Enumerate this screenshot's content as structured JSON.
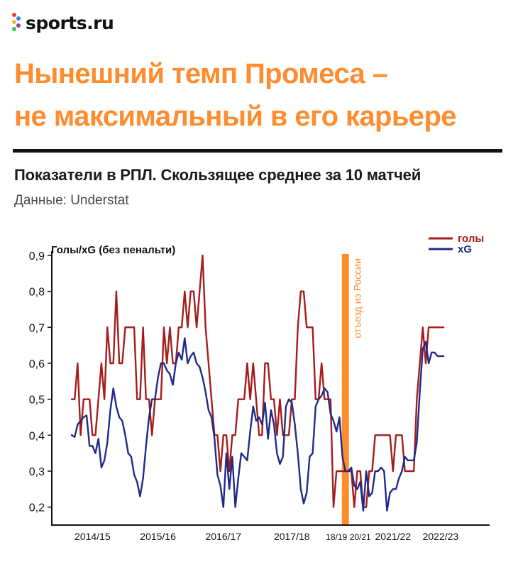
{
  "brand": {
    "name": "sports.ru",
    "dot_colors": [
      "#e8412c",
      "#f7b731",
      "#3fbf5f",
      "#2e86de",
      "#8e44ad"
    ]
  },
  "headline": {
    "line1": "Нынешний темп Промеса –",
    "line2": "не максимальный в его карьере"
  },
  "subtitle": "Показатели в РПЛ. Скользящее среднее за 10 матчей",
  "source": "Данные: Understat",
  "colors": {
    "accent": "#ff8c2e",
    "goals": "#a51c1c",
    "xg": "#1f2a8a",
    "text": "#111111"
  },
  "chart_data": {
    "type": "line",
    "title": "Показатели в РПЛ. Скользящее среднее за 10 матчей",
    "ylabel": "Голы/xG  (без пенальти)",
    "xlabel": "",
    "ylim": [
      0.15,
      0.9
    ],
    "yticks": [
      "0,2",
      "0,3",
      "0,4",
      "0,5",
      "0,6",
      "0,7",
      "0,8",
      "0,9"
    ],
    "ytick_values": [
      0.2,
      0.3,
      0.4,
      0.5,
      0.6,
      0.7,
      0.8,
      0.9
    ],
    "xlim": [
      0,
      140
    ],
    "season_labels": [
      {
        "label": "2014/15",
        "x": 7
      },
      {
        "label": "2015/16",
        "x": 29
      },
      {
        "label": "2016/17",
        "x": 51
      },
      {
        "label": "2017/18",
        "x": 74
      },
      {
        "label": "18/19",
        "x": 89
      },
      {
        "label": "20/21",
        "x": 97
      },
      {
        "label": "2021/22",
        "x": 108
      },
      {
        "label": "2022/23",
        "x": 124
      }
    ],
    "grid": false,
    "legend": "top-right",
    "annotation": {
      "text": "отъезд из России",
      "x": 92
    },
    "series": [
      {
        "name": "голы",
        "color": "#a51c1c",
        "x": [
          0,
          1,
          2,
          3,
          4,
          5,
          6,
          7,
          8,
          9,
          10,
          11,
          12,
          13,
          14,
          15,
          16,
          17,
          18,
          19,
          20,
          21,
          22,
          23,
          24,
          25,
          26,
          27,
          28,
          29,
          30,
          31,
          32,
          33,
          34,
          35,
          36,
          37,
          38,
          39,
          40,
          41,
          42,
          43,
          44,
          45,
          46,
          47,
          48,
          49,
          50,
          51,
          52,
          53,
          54,
          55,
          56,
          57,
          58,
          59,
          60,
          61,
          62,
          63,
          64,
          65,
          66,
          67,
          68,
          69,
          70,
          71,
          72,
          73,
          74,
          75,
          76,
          77,
          78,
          79,
          80,
          81,
          82,
          83,
          84,
          85,
          86,
          87,
          88,
          89,
          90,
          91,
          92,
          93,
          94,
          95,
          96,
          97,
          98,
          99,
          100,
          101,
          102,
          103,
          104,
          105,
          106,
          107,
          108,
          109,
          110,
          111,
          112,
          113,
          114,
          115,
          116,
          117,
          118,
          119,
          120,
          121,
          122,
          123,
          124,
          125
        ],
        "values": [
          0.5,
          0.5,
          0.6,
          0.4,
          0.5,
          0.5,
          0.5,
          0.4,
          0.4,
          0.5,
          0.6,
          0.5,
          0.7,
          0.6,
          0.6,
          0.8,
          0.6,
          0.6,
          0.7,
          0.7,
          0.7,
          0.7,
          0.5,
          0.5,
          0.7,
          0.5,
          0.5,
          0.4,
          0.5,
          0.5,
          0.5,
          0.7,
          0.6,
          0.7,
          0.6,
          0.6,
          0.7,
          0.7,
          0.8,
          0.7,
          0.8,
          0.8,
          0.7,
          0.8,
          0.9,
          0.7,
          0.6,
          0.5,
          0.4,
          0.4,
          0.3,
          0.4,
          0.4,
          0.3,
          0.4,
          0.4,
          0.5,
          0.5,
          0.5,
          0.6,
          0.5,
          0.6,
          0.5,
          0.4,
          0.4,
          0.6,
          0.6,
          0.5,
          0.5,
          0.4,
          0.5,
          0.4,
          0.4,
          0.4,
          0.5,
          0.5,
          0.7,
          0.8,
          0.8,
          0.7,
          0.7,
          0.7,
          0.5,
          0.5,
          0.6,
          0.5,
          0.5,
          0.5,
          0.2,
          0.3,
          0.3,
          0.3,
          0.3,
          0.3,
          0.3,
          0.2,
          0.3,
          0.3,
          0.2,
          0.2,
          0.3,
          0.3,
          0.4,
          0.4,
          0.4,
          0.4,
          0.4,
          0.4,
          0.3,
          0.4,
          0.4,
          0.4,
          0.3,
          0.3,
          0.3,
          0.3,
          0.5,
          0.6,
          0.7,
          0.6,
          0.7,
          0.7,
          0.7,
          0.7,
          0.7,
          0.7
        ]
      },
      {
        "name": "xG",
        "color": "#1f2a8a",
        "x": [
          0,
          1,
          2,
          3,
          4,
          5,
          6,
          7,
          8,
          9,
          10,
          11,
          12,
          13,
          14,
          15,
          16,
          17,
          18,
          19,
          20,
          21,
          22,
          23,
          24,
          25,
          26,
          27,
          28,
          29,
          30,
          31,
          32,
          33,
          34,
          35,
          36,
          37,
          38,
          39,
          40,
          41,
          42,
          43,
          44,
          45,
          46,
          47,
          48,
          49,
          50,
          51,
          52,
          53,
          54,
          55,
          56,
          57,
          58,
          59,
          60,
          61,
          62,
          63,
          64,
          65,
          66,
          67,
          68,
          69,
          70,
          71,
          72,
          73,
          74,
          75,
          76,
          77,
          78,
          79,
          80,
          81,
          82,
          83,
          84,
          85,
          86,
          87,
          88,
          89,
          90,
          91,
          92,
          93,
          94,
          95,
          96,
          97,
          98,
          99,
          100,
          101,
          102,
          103,
          104,
          105,
          106,
          107,
          108,
          109,
          110,
          111,
          112,
          113,
          114,
          115,
          116,
          117,
          118,
          119,
          120,
          121,
          122,
          123,
          124,
          125
        ],
        "values": [
          0.4,
          0.395,
          0.43,
          0.44,
          0.45,
          0.455,
          0.37,
          0.37,
          0.35,
          0.39,
          0.31,
          0.33,
          0.38,
          0.47,
          0.53,
          0.48,
          0.45,
          0.44,
          0.4,
          0.35,
          0.34,
          0.29,
          0.27,
          0.23,
          0.28,
          0.37,
          0.45,
          0.5,
          0.5,
          0.56,
          0.6,
          0.6,
          0.58,
          0.57,
          0.54,
          0.6,
          0.63,
          0.61,
          0.67,
          0.6,
          0.62,
          0.63,
          0.6,
          0.59,
          0.56,
          0.52,
          0.47,
          0.45,
          0.39,
          0.29,
          0.26,
          0.2,
          0.35,
          0.25,
          0.34,
          0.2,
          0.28,
          0.35,
          0.34,
          0.33,
          0.41,
          0.48,
          0.44,
          0.45,
          0.43,
          0.49,
          0.39,
          0.47,
          0.43,
          0.35,
          0.32,
          0.34,
          0.48,
          0.5,
          0.49,
          0.43,
          0.35,
          0.25,
          0.21,
          0.24,
          0.34,
          0.35,
          0.48,
          0.5,
          0.51,
          0.53,
          0.52,
          0.46,
          0.44,
          0.41,
          0.45,
          0.34,
          0.3,
          0.3,
          0.31,
          0.26,
          0.25,
          0.27,
          0.19,
          0.3,
          0.23,
          0.24,
          0.3,
          0.3,
          0.31,
          0.3,
          0.19,
          0.24,
          0.25,
          0.25,
          0.28,
          0.3,
          0.34,
          0.33,
          0.33,
          0.33,
          0.38,
          0.52,
          0.64,
          0.66,
          0.6,
          0.63,
          0.63,
          0.62,
          0.62,
          0.62
        ]
      }
    ]
  }
}
